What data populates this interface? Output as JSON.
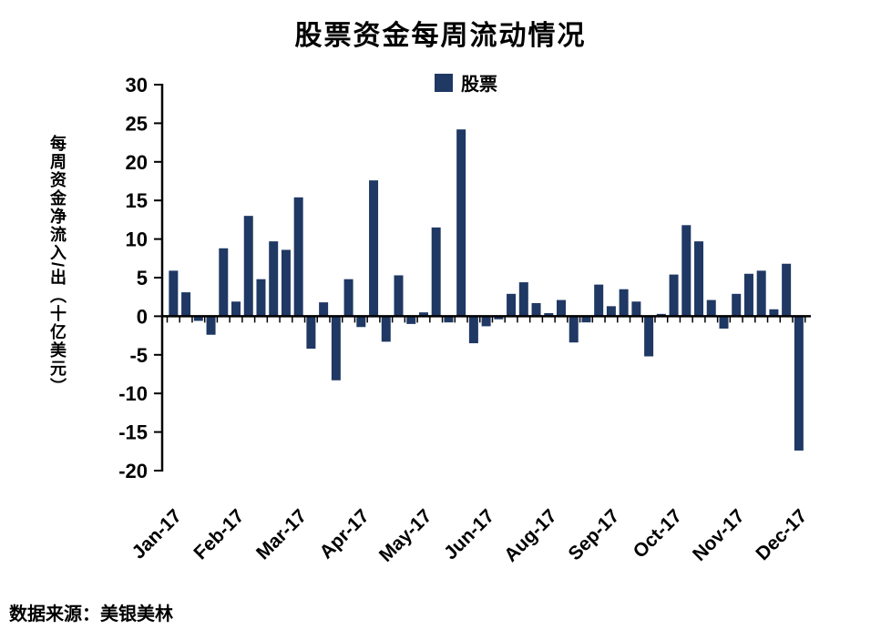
{
  "title": "股票资金每周流动情况",
  "legend": {
    "label": "股票",
    "color": "#1F3864"
  },
  "y_axis_title": "每周资金净流入/出（十亿美元）",
  "source": "数据来源：美银美林",
  "chart_data": {
    "type": "bar",
    "title": "股票资金每周流动情况",
    "xlabel": "",
    "ylabel": "每周资金净流入/出（十亿美元）",
    "ylim": [
      -20,
      30
    ],
    "y_tick_step": 5,
    "y_ticks": [
      30,
      25,
      20,
      15,
      10,
      5,
      0,
      -5,
      -10,
      -15,
      -20
    ],
    "grid": false,
    "legend_position": "top-center",
    "x_unit": "week of 2017",
    "x_tick_labels": [
      {
        "index": 0,
        "label": "Jan-17"
      },
      {
        "index": 5,
        "label": "Feb-17"
      },
      {
        "index": 10,
        "label": "Mar-17"
      },
      {
        "index": 15,
        "label": "Apr-17"
      },
      {
        "index": 20,
        "label": "May-17"
      },
      {
        "index": 25,
        "label": "Jun-17"
      },
      {
        "index": 30,
        "label": "Aug-17"
      },
      {
        "index": 35,
        "label": "Sep-17"
      },
      {
        "index": 40,
        "label": "Oct-17"
      },
      {
        "index": 45,
        "label": "Nov-17"
      },
      {
        "index": 50,
        "label": "Dec-17"
      }
    ],
    "series": [
      {
        "name": "股票",
        "color": "#1F3864",
        "values": [
          5.9,
          3.1,
          -0.6,
          -2.4,
          8.8,
          1.9,
          13.0,
          4.8,
          9.7,
          8.6,
          15.4,
          -4.2,
          1.8,
          -8.3,
          4.8,
          -1.4,
          17.6,
          -3.3,
          5.3,
          -1.0,
          0.5,
          11.5,
          -0.8,
          24.2,
          -3.5,
          -1.3,
          -0.4,
          2.9,
          4.4,
          1.7,
          0.4,
          2.1,
          -3.4,
          -0.8,
          4.1,
          1.3,
          3.5,
          1.9,
          -5.2,
          0.3,
          5.4,
          11.8,
          9.7,
          2.1,
          -1.6,
          2.9,
          5.5,
          5.9,
          0.9,
          6.8,
          -17.4
        ]
      }
    ]
  }
}
